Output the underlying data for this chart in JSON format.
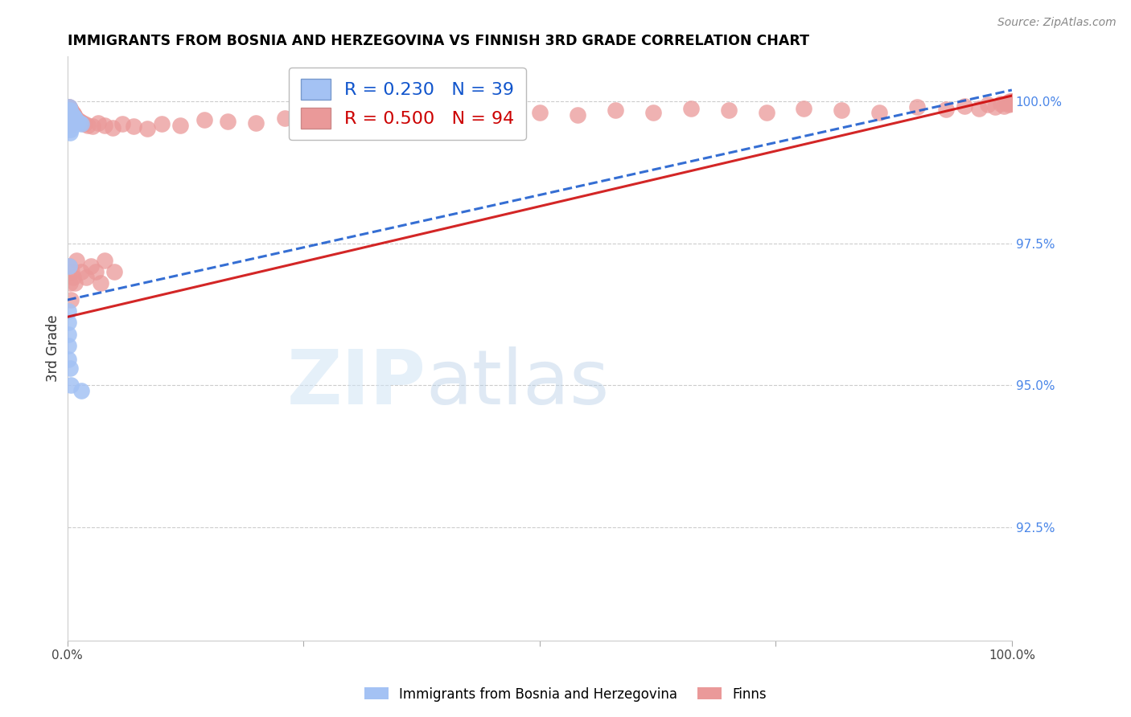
{
  "title": "IMMIGRANTS FROM BOSNIA AND HERZEGOVINA VS FINNISH 3RD GRADE CORRELATION CHART",
  "source": "Source: ZipAtlas.com",
  "ylabel": "3rd Grade",
  "ylabel_right_ticks": [
    "100.0%",
    "97.5%",
    "95.0%",
    "92.5%"
  ],
  "ylabel_right_values": [
    1.0,
    0.975,
    0.95,
    0.925
  ],
  "xmin": 0.0,
  "xmax": 1.0,
  "ymin": 0.905,
  "ymax": 1.008,
  "watermark_zip": "ZIP",
  "watermark_atlas": "atlas",
  "legend_r_blue": "0.230",
  "legend_n_blue": "39",
  "legend_r_pink": "0.500",
  "legend_n_pink": "94",
  "legend_label_blue": "Immigrants from Bosnia and Herzegovina",
  "legend_label_pink": "Finns",
  "blue_color": "#a4c2f4",
  "pink_color": "#ea9999",
  "blue_line_color": "#1155cc",
  "pink_line_color": "#cc0000",
  "grid_color": "#cccccc",
  "title_color": "#000000",
  "right_tick_color": "#4a86e8",
  "blue_dots": [
    [
      0.001,
      0.9985
    ],
    [
      0.001,
      0.9975
    ],
    [
      0.001,
      0.9965
    ],
    [
      0.002,
      0.999
    ],
    [
      0.002,
      0.998
    ],
    [
      0.002,
      0.997
    ],
    [
      0.002,
      0.996
    ],
    [
      0.002,
      0.995
    ],
    [
      0.003,
      0.9985
    ],
    [
      0.003,
      0.9975
    ],
    [
      0.003,
      0.9965
    ],
    [
      0.003,
      0.9955
    ],
    [
      0.003,
      0.9945
    ],
    [
      0.004,
      0.998
    ],
    [
      0.004,
      0.997
    ],
    [
      0.004,
      0.996
    ],
    [
      0.004,
      0.995
    ],
    [
      0.005,
      0.9975
    ],
    [
      0.005,
      0.9968
    ],
    [
      0.005,
      0.9958
    ],
    [
      0.006,
      0.9975
    ],
    [
      0.006,
      0.9965
    ],
    [
      0.007,
      0.9972
    ],
    [
      0.007,
      0.9962
    ],
    [
      0.008,
      0.997
    ],
    [
      0.009,
      0.9968
    ],
    [
      0.01,
      0.9966
    ],
    [
      0.011,
      0.9964
    ],
    [
      0.013,
      0.9962
    ],
    [
      0.015,
      0.996
    ],
    [
      0.002,
      0.971
    ],
    [
      0.001,
      0.963
    ],
    [
      0.001,
      0.961
    ],
    [
      0.001,
      0.959
    ],
    [
      0.001,
      0.957
    ],
    [
      0.001,
      0.9545
    ],
    [
      0.003,
      0.953
    ],
    [
      0.004,
      0.95
    ],
    [
      0.015,
      0.949
    ]
  ],
  "pink_dots": [
    [
      0.001,
      0.999
    ],
    [
      0.001,
      0.9985
    ],
    [
      0.001,
      0.998
    ],
    [
      0.001,
      0.9975
    ],
    [
      0.002,
      0.999
    ],
    [
      0.002,
      0.9985
    ],
    [
      0.002,
      0.998
    ],
    [
      0.002,
      0.9975
    ],
    [
      0.002,
      0.997
    ],
    [
      0.002,
      0.9965
    ],
    [
      0.003,
      0.9988
    ],
    [
      0.003,
      0.9982
    ],
    [
      0.003,
      0.9976
    ],
    [
      0.003,
      0.997
    ],
    [
      0.003,
      0.9964
    ],
    [
      0.003,
      0.9958
    ],
    [
      0.004,
      0.9985
    ],
    [
      0.004,
      0.9978
    ],
    [
      0.004,
      0.997
    ],
    [
      0.004,
      0.9963
    ],
    [
      0.005,
      0.9982
    ],
    [
      0.005,
      0.9974
    ],
    [
      0.005,
      0.9967
    ],
    [
      0.006,
      0.9979
    ],
    [
      0.006,
      0.9972
    ],
    [
      0.006,
      0.9965
    ],
    [
      0.007,
      0.9976
    ],
    [
      0.008,
      0.9973
    ],
    [
      0.009,
      0.997
    ],
    [
      0.01,
      0.9968
    ],
    [
      0.012,
      0.9966
    ],
    [
      0.015,
      0.9964
    ],
    [
      0.018,
      0.9961
    ],
    [
      0.022,
      0.9958
    ],
    [
      0.027,
      0.9956
    ],
    [
      0.033,
      0.9962
    ],
    [
      0.04,
      0.9958
    ],
    [
      0.048,
      0.9954
    ],
    [
      0.058,
      0.996
    ],
    [
      0.07,
      0.9956
    ],
    [
      0.085,
      0.9952
    ],
    [
      0.1,
      0.996
    ],
    [
      0.12,
      0.9958
    ],
    [
      0.145,
      0.9968
    ],
    [
      0.17,
      0.9965
    ],
    [
      0.2,
      0.9962
    ],
    [
      0.23,
      0.997
    ],
    [
      0.265,
      0.9975
    ],
    [
      0.3,
      0.9972
    ],
    [
      0.34,
      0.9968
    ],
    [
      0.38,
      0.998
    ],
    [
      0.42,
      0.9976
    ],
    [
      0.46,
      0.9984
    ],
    [
      0.5,
      0.998
    ],
    [
      0.54,
      0.9976
    ],
    [
      0.58,
      0.9985
    ],
    [
      0.62,
      0.9981
    ],
    [
      0.66,
      0.9988
    ],
    [
      0.7,
      0.9984
    ],
    [
      0.74,
      0.998
    ],
    [
      0.78,
      0.9988
    ],
    [
      0.82,
      0.9984
    ],
    [
      0.86,
      0.998
    ],
    [
      0.9,
      0.999
    ],
    [
      0.93,
      0.9986
    ],
    [
      0.95,
      0.9992
    ],
    [
      0.965,
      0.9988
    ],
    [
      0.975,
      0.9994
    ],
    [
      0.982,
      0.999
    ],
    [
      0.988,
      0.9996
    ],
    [
      0.992,
      0.9992
    ],
    [
      0.995,
      0.9998
    ],
    [
      0.997,
      0.9994
    ],
    [
      0.998,
      1.0
    ],
    [
      0.999,
      0.9996
    ],
    [
      0.9993,
      1.0
    ],
    [
      0.9996,
      0.9998
    ],
    [
      0.9998,
      1.0
    ],
    [
      0.9999,
      0.9999
    ],
    [
      1.0,
      1.0
    ],
    [
      0.002,
      0.971
    ],
    [
      0.003,
      0.968
    ],
    [
      0.004,
      0.965
    ],
    [
      0.005,
      0.97
    ],
    [
      0.006,
      0.969
    ],
    [
      0.008,
      0.968
    ],
    [
      0.01,
      0.972
    ],
    [
      0.015,
      0.97
    ],
    [
      0.02,
      0.969
    ],
    [
      0.025,
      0.971
    ],
    [
      0.03,
      0.97
    ],
    [
      0.035,
      0.968
    ],
    [
      0.04,
      0.972
    ],
    [
      0.05,
      0.97
    ]
  ],
  "blue_trend_x0": 0.0,
  "blue_trend_y0": 0.965,
  "blue_trend_x1": 1.0,
  "blue_trend_y1": 1.002,
  "pink_trend_x0": 0.0,
  "pink_trend_y0": 0.962,
  "pink_trend_x1": 1.0,
  "pink_trend_y1": 1.001
}
